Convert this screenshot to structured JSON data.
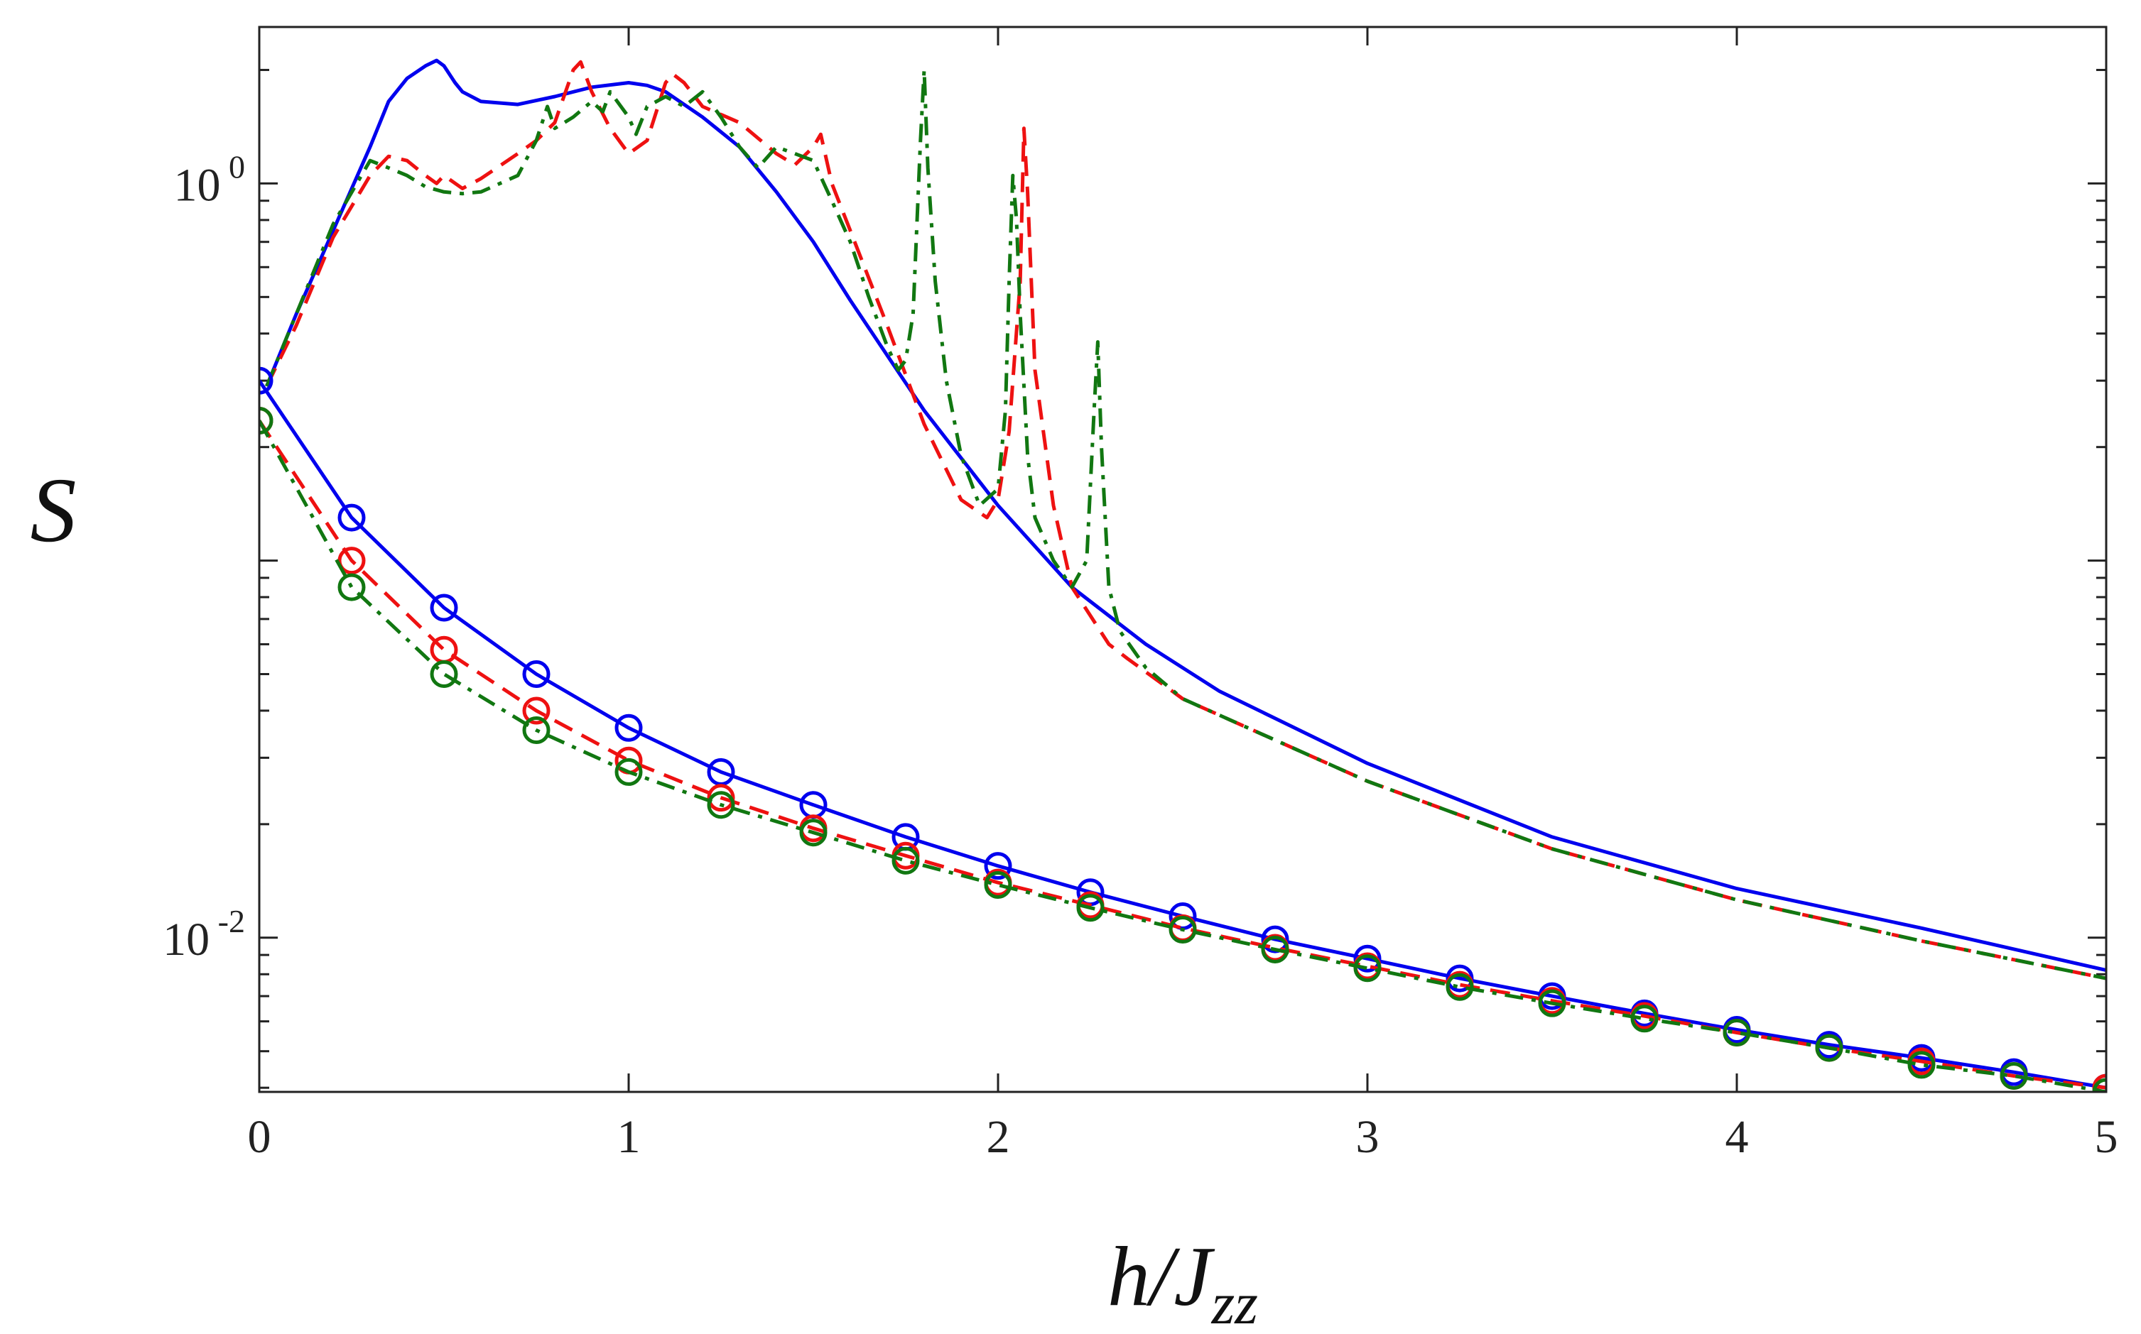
{
  "chart_data": {
    "type": "line",
    "title": "",
    "xlabel": "h/J_zz",
    "ylabel": "S",
    "xlim": [
      0,
      5
    ],
    "ylim": [
      0.0039,
      2.6
    ],
    "yscale": "log",
    "grid": false,
    "xticks": [
      0,
      1,
      2,
      3,
      4,
      5
    ],
    "xtick_labels": [
      "0",
      "1",
      "2",
      "3",
      "4",
      "5"
    ],
    "yticks_major": [
      0.01,
      1
    ],
    "ytick_labels": [
      {
        "base": "10",
        "exp": "-2"
      },
      {
        "base": "10",
        "exp": "0"
      }
    ],
    "colors": {
      "blue": "#0000ee",
      "red": "#ee1111",
      "green": "#117711"
    },
    "series": [
      {
        "name": "blue-solid-upper",
        "color": "#0000ee",
        "style": "solid",
        "marker": "none",
        "x": [
          0.02,
          0.1,
          0.2,
          0.3,
          0.35,
          0.4,
          0.45,
          0.48,
          0.5,
          0.53,
          0.55,
          0.6,
          0.7,
          0.8,
          0.9,
          1.0,
          1.05,
          1.1,
          1.2,
          1.3,
          1.4,
          1.5,
          1.6,
          1.7,
          1.8,
          2.0,
          2.2,
          2.4,
          2.6,
          3.0,
          3.5,
          4.0,
          4.5,
          5.0
        ],
        "y": [
          0.29,
          0.45,
          0.75,
          1.25,
          1.65,
          1.9,
          2.05,
          2.12,
          2.05,
          1.85,
          1.75,
          1.65,
          1.62,
          1.7,
          1.8,
          1.85,
          1.82,
          1.75,
          1.5,
          1.25,
          0.95,
          0.7,
          0.49,
          0.35,
          0.25,
          0.14,
          0.085,
          0.06,
          0.045,
          0.029,
          0.0185,
          0.0135,
          0.0106,
          0.0082
        ]
      },
      {
        "name": "red-dashed-upper",
        "color": "#ee1111",
        "style": "dashed",
        "marker": "none",
        "x": [
          0.02,
          0.1,
          0.2,
          0.3,
          0.35,
          0.4,
          0.45,
          0.48,
          0.5,
          0.55,
          0.6,
          0.7,
          0.75,
          0.8,
          0.82,
          0.85,
          0.87,
          0.9,
          0.95,
          1.0,
          1.05,
          1.1,
          1.12,
          1.15,
          1.2,
          1.3,
          1.4,
          1.45,
          1.5,
          1.52,
          1.55,
          1.6,
          1.7,
          1.8,
          1.9,
          1.97,
          2.0,
          2.03,
          2.06,
          2.07,
          2.08,
          2.1,
          2.15,
          2.2,
          2.3,
          2.35,
          2.5,
          3.0,
          3.5,
          4.0,
          4.5,
          5.0
        ],
        "y": [
          0.29,
          0.42,
          0.72,
          1.05,
          1.18,
          1.15,
          1.05,
          1.0,
          1.05,
          0.97,
          1.03,
          1.2,
          1.3,
          1.45,
          1.65,
          2.0,
          2.1,
          1.75,
          1.4,
          1.2,
          1.3,
          1.85,
          1.95,
          1.85,
          1.6,
          1.45,
          1.2,
          1.12,
          1.25,
          1.35,
          1.0,
          0.75,
          0.42,
          0.23,
          0.145,
          0.13,
          0.145,
          0.22,
          0.55,
          1.4,
          0.95,
          0.32,
          0.14,
          0.085,
          0.06,
          0.055,
          0.043,
          0.026,
          0.0172,
          0.0126,
          0.0098,
          0.0078
        ]
      },
      {
        "name": "green-dashdot-upper",
        "color": "#117711",
        "style": "dashdot",
        "marker": "none",
        "x": [
          0.02,
          0.1,
          0.2,
          0.3,
          0.35,
          0.4,
          0.45,
          0.5,
          0.55,
          0.6,
          0.7,
          0.75,
          0.78,
          0.8,
          0.85,
          0.9,
          0.93,
          0.95,
          1.0,
          1.02,
          1.05,
          1.1,
          1.15,
          1.2,
          1.25,
          1.3,
          1.35,
          1.4,
          1.45,
          1.5,
          1.55,
          1.6,
          1.65,
          1.7,
          1.73,
          1.75,
          1.77,
          1.79,
          1.8,
          1.81,
          1.83,
          1.86,
          1.9,
          1.95,
          2.0,
          2.02,
          2.03,
          2.04,
          2.05,
          2.06,
          2.08,
          2.1,
          2.15,
          2.2,
          2.24,
          2.26,
          2.27,
          2.28,
          2.3,
          2.33,
          2.4,
          2.5,
          3.0,
          3.5,
          4.0,
          4.5,
          5.0
        ],
        "y": [
          0.29,
          0.45,
          0.78,
          1.15,
          1.1,
          1.05,
          0.98,
          0.95,
          0.94,
          0.95,
          1.05,
          1.3,
          1.6,
          1.4,
          1.5,
          1.65,
          1.55,
          1.75,
          1.5,
          1.35,
          1.6,
          1.7,
          1.6,
          1.75,
          1.5,
          1.25,
          1.1,
          1.25,
          1.2,
          1.15,
          0.9,
          0.7,
          0.5,
          0.37,
          0.32,
          0.34,
          0.45,
          1.3,
          2.0,
          1.1,
          0.55,
          0.3,
          0.19,
          0.14,
          0.155,
          0.25,
          0.55,
          1.05,
          0.8,
          0.45,
          0.19,
          0.13,
          0.1,
          0.085,
          0.1,
          0.25,
          0.38,
          0.2,
          0.085,
          0.065,
          0.052,
          0.043,
          0.026,
          0.0172,
          0.0126,
          0.0098,
          0.0078
        ]
      },
      {
        "name": "blue-solid-circles-lower",
        "color": "#0000ee",
        "style": "solid",
        "marker": "circle",
        "x": [
          0,
          0.25,
          0.5,
          0.75,
          1.0,
          1.25,
          1.5,
          1.75,
          2.0,
          2.25,
          2.5,
          2.75,
          3.0,
          3.25,
          3.5,
          3.75,
          4.0,
          4.25,
          4.5,
          4.75,
          5.0
        ],
        "y": [
          0.3,
          0.13,
          0.075,
          0.05,
          0.036,
          0.0275,
          0.0225,
          0.0185,
          0.0155,
          0.0132,
          0.0114,
          0.0099,
          0.0088,
          0.0078,
          0.007,
          0.0063,
          0.0057,
          0.0052,
          0.0048,
          0.0044,
          0.004
        ]
      },
      {
        "name": "red-dashed-circles-lower",
        "color": "#ee1111",
        "style": "dashed",
        "marker": "circle",
        "x": [
          0,
          0.25,
          0.5,
          0.75,
          1.0,
          1.25,
          1.5,
          1.75,
          2.0,
          2.25,
          2.5,
          2.75,
          3.0,
          3.25,
          3.5,
          3.75,
          4.0,
          4.25,
          4.5,
          4.75,
          5.0
        ],
        "y": [
          0.235,
          0.1,
          0.058,
          0.04,
          0.0295,
          0.0235,
          0.0195,
          0.0165,
          0.014,
          0.0122,
          0.0106,
          0.0094,
          0.0084,
          0.0075,
          0.0068,
          0.0062,
          0.0056,
          0.0051,
          0.0047,
          0.0043,
          0.004
        ]
      },
      {
        "name": "green-dashdot-circles-lower",
        "color": "#117711",
        "style": "dashdot",
        "marker": "circle",
        "x": [
          0,
          0.25,
          0.5,
          0.75,
          1.0,
          1.25,
          1.5,
          1.75,
          2.0,
          2.25,
          2.5,
          2.75,
          3.0,
          3.25,
          3.5,
          3.75,
          4.0,
          4.25,
          4.5,
          4.75,
          5.0
        ],
        "y": [
          0.235,
          0.085,
          0.05,
          0.0355,
          0.0275,
          0.0225,
          0.019,
          0.016,
          0.0138,
          0.012,
          0.0105,
          0.0093,
          0.0083,
          0.0074,
          0.0067,
          0.0061,
          0.0056,
          0.0051,
          0.0046,
          0.0043,
          0.0039
        ]
      }
    ]
  }
}
